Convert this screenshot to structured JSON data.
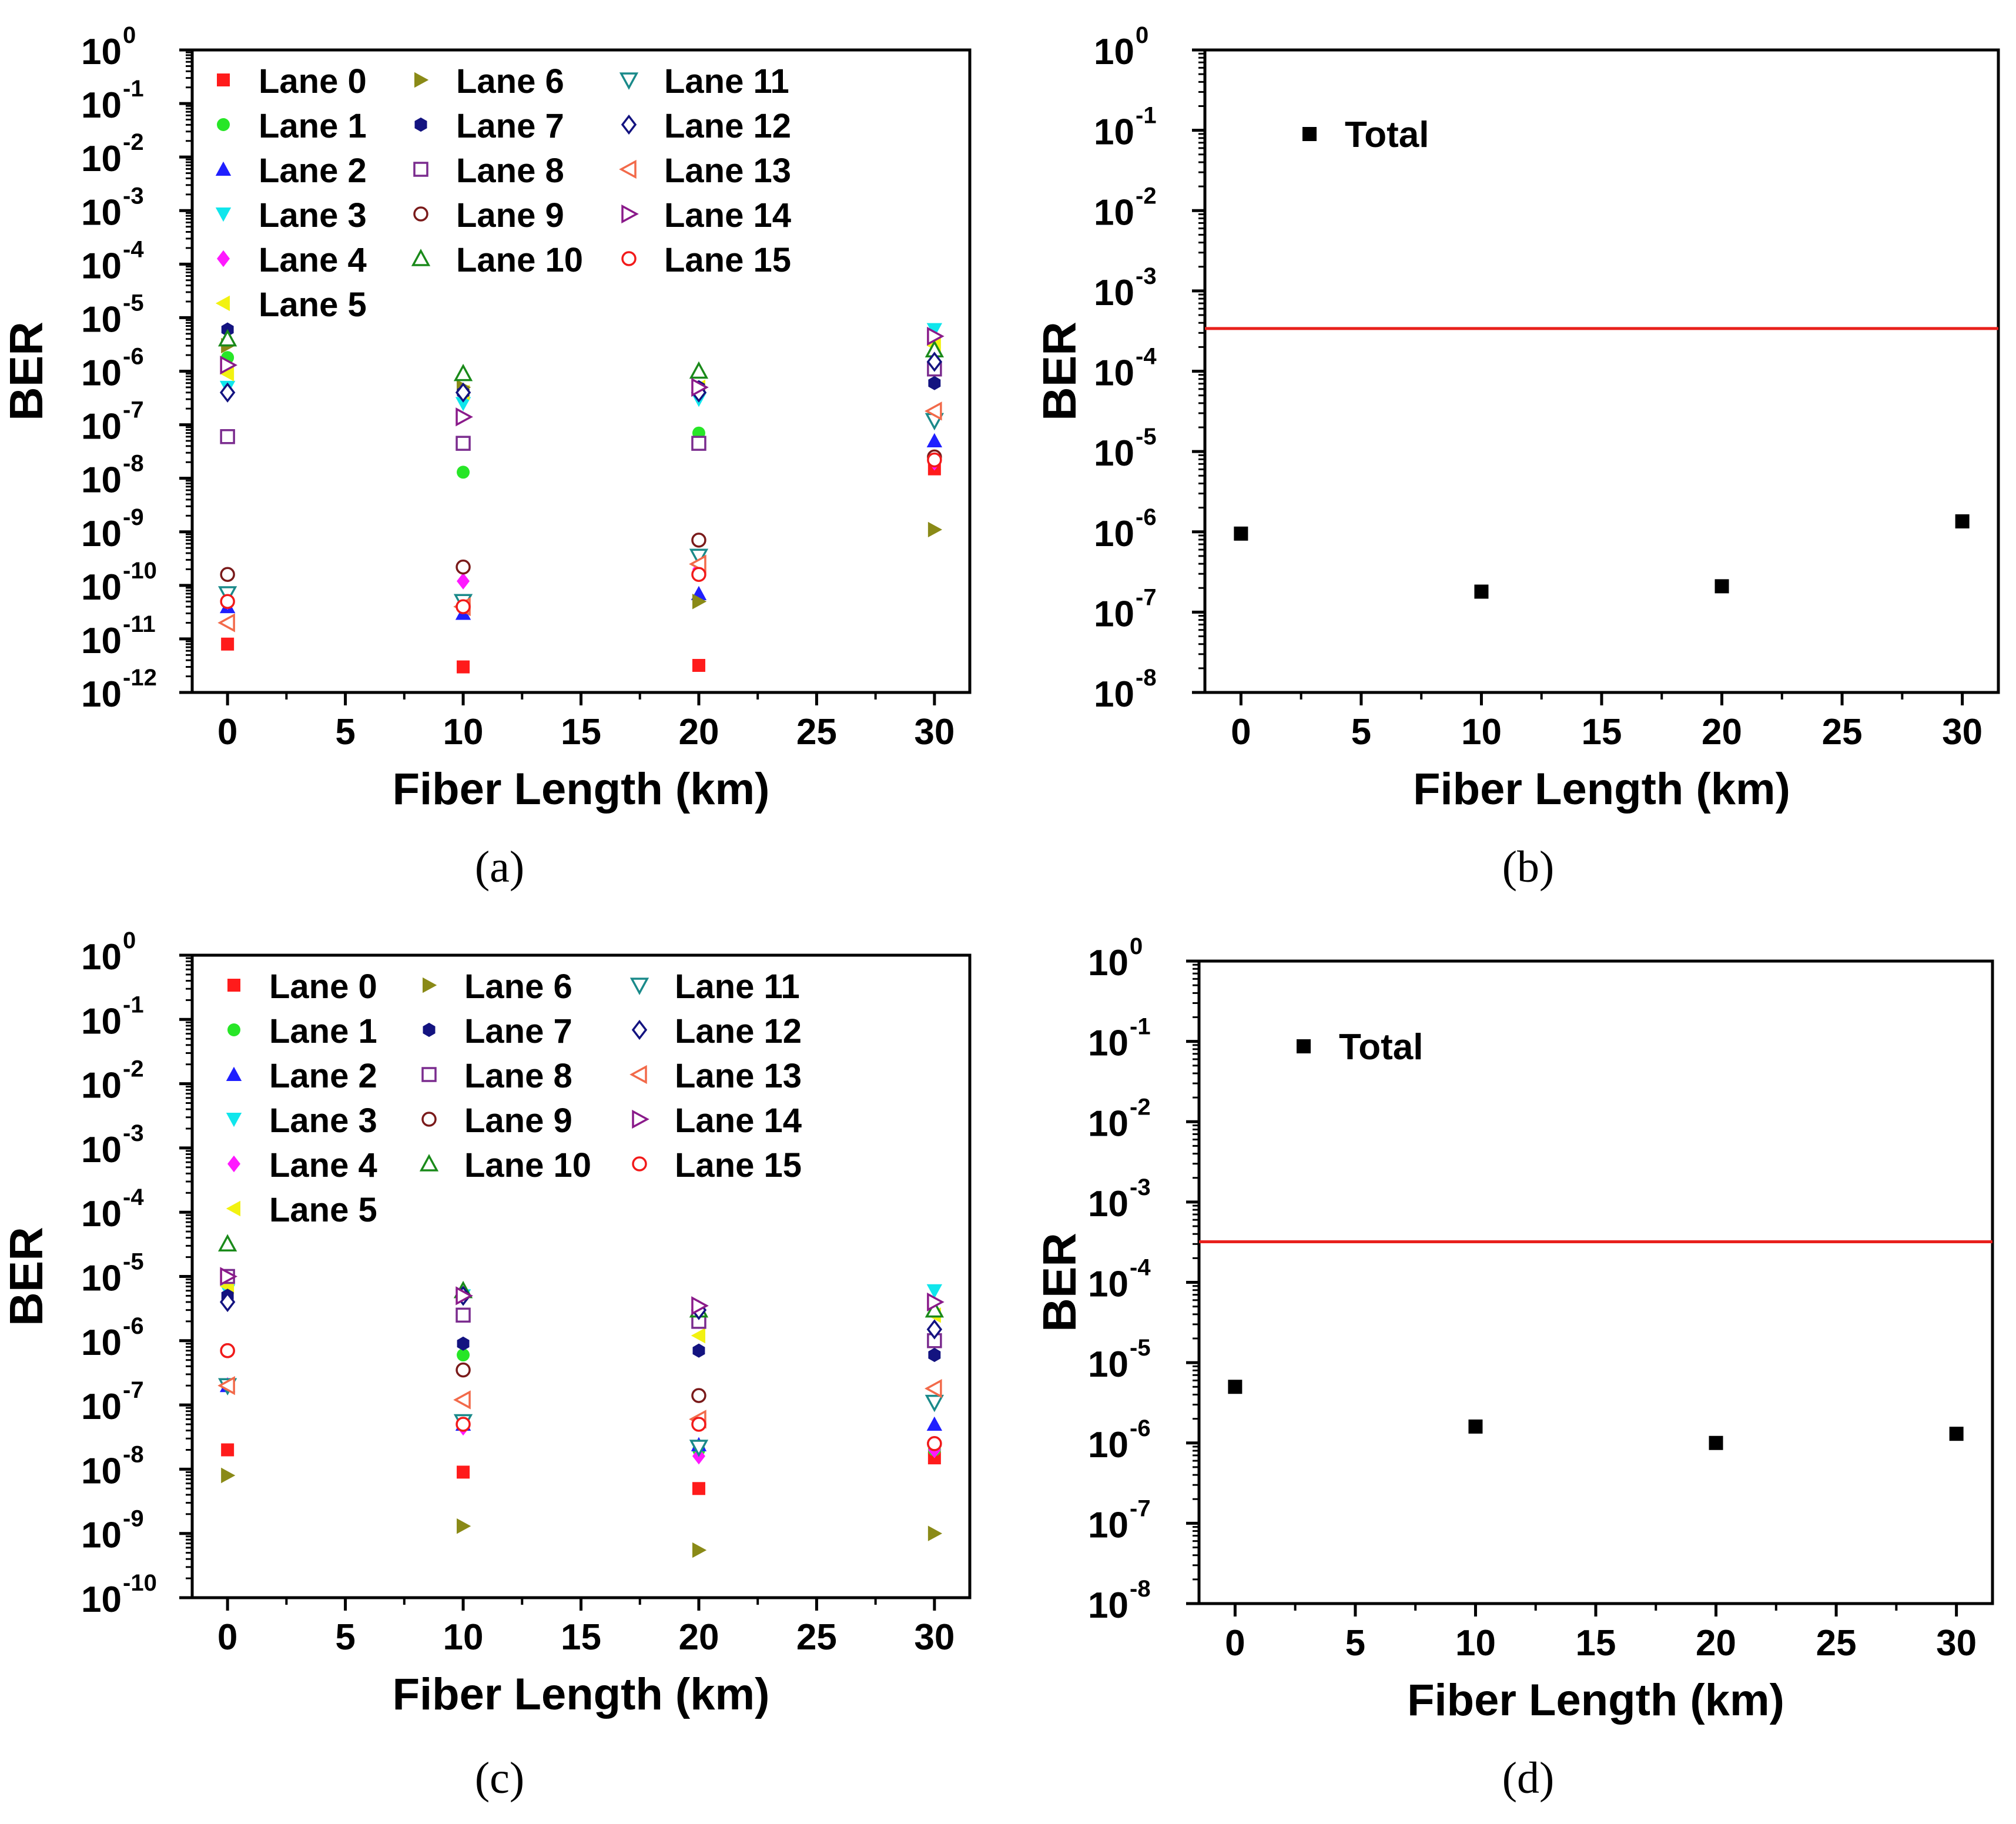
{
  "colors": {
    "axis": "#000000",
    "threshold_line": "#e8201c",
    "total_marker": "#000000"
  },
  "chart_data": [
    {
      "panel": "a",
      "caption": "(a)",
      "type": "scatter",
      "xlabel": "Fiber Length (km)",
      "ylabel": "BER",
      "yscale": "log",
      "xlim": [
        -1.5,
        31.5
      ],
      "x_ticks": [
        0,
        5,
        10,
        15,
        20,
        25,
        30
      ],
      "ylim_exp": [
        -12,
        0
      ],
      "x": [
        0,
        10,
        20,
        30
      ],
      "legend_position": "top-left inside",
      "series": [
        {
          "name": "Lane 0",
          "marker": "square",
          "color": "#ff1b1b",
          "values": [
            8e-12,
            3e-12,
            3.2e-12,
            1.5e-08
          ]
        },
        {
          "name": "Lane 1",
          "marker": "circle",
          "color": "#27e627",
          "values": [
            1.8e-06,
            1.3e-08,
            7e-08,
            1.6e-07
          ]
        },
        {
          "name": "Lane 2",
          "marker": "triangle-up",
          "color": "#1f1fff",
          "values": [
            4e-11,
            3e-11,
            7e-11,
            5e-08
          ]
        },
        {
          "name": "Lane 3",
          "marker": "triangle-down",
          "color": "#10e6ec",
          "values": [
            5e-07,
            2.5e-07,
            3e-07,
            6e-06
          ]
        },
        {
          "name": "Lane 4",
          "marker": "diamond",
          "color": "#ff19ff",
          "values": [
            5e-11,
            1.2e-10,
            2e-10,
            2e-08
          ]
        },
        {
          "name": "Lane 5",
          "marker": "triangle-left",
          "color": "#f2f211",
          "values": [
            9e-07,
            4e-07,
            5e-07,
            3e-06
          ]
        },
        {
          "name": "Lane 6",
          "marker": "triangle-right",
          "color": "#8a8a17",
          "values": [
            3e-06,
            5e-07,
            5e-11,
            1.1e-09
          ]
        },
        {
          "name": "Lane 7",
          "marker": "hexagon",
          "color": "#131380",
          "values": [
            6e-06,
            4e-07,
            5e-07,
            6e-07
          ]
        },
        {
          "name": "Lane 8",
          "marker": "square-open",
          "color": "#7a2b8e",
          "values": [
            6e-08,
            4.5e-08,
            4.5e-08,
            1.1e-06
          ]
        },
        {
          "name": "Lane 9",
          "marker": "circle-open",
          "color": "#7a1a1a",
          "values": [
            1.6e-10,
            2.2e-10,
            7e-10,
            2.5e-08
          ]
        },
        {
          "name": "Lane 10",
          "marker": "triangle-up-open",
          "color": "#1a8a1a",
          "values": [
            4e-06,
            9e-07,
            1e-06,
            2.5e-06
          ]
        },
        {
          "name": "Lane 11",
          "marker": "triangle-down-open",
          "color": "#1a8a8a",
          "values": [
            7e-11,
            5e-11,
            3.5e-10,
            1.2e-07
          ]
        },
        {
          "name": "Lane 12",
          "marker": "diamond-open",
          "color": "#131380",
          "values": [
            4e-07,
            4e-07,
            4e-07,
            1.5e-06
          ]
        },
        {
          "name": "Lane 13",
          "marker": "triangle-left-open",
          "color": "#f26a4a",
          "values": [
            2e-11,
            4e-11,
            2.5e-10,
            1.8e-07
          ]
        },
        {
          "name": "Lane 14",
          "marker": "triangle-right-open",
          "color": "#8a1a8a",
          "values": [
            1.3e-06,
            1.4e-07,
            5e-07,
            4.5e-06
          ]
        },
        {
          "name": "Lane 15",
          "marker": "circle-open",
          "color": "#f21a1a",
          "values": [
            5e-11,
            4e-11,
            1.6e-10,
            2.2e-08
          ]
        }
      ]
    },
    {
      "panel": "b",
      "caption": "(b)",
      "type": "scatter",
      "xlabel": "Fiber Length (km)",
      "ylabel": "BER",
      "yscale": "log",
      "xlim": [
        -1.5,
        31.5
      ],
      "x_ticks": [
        0,
        5,
        10,
        15,
        20,
        25,
        30
      ],
      "ylim_exp": [
        -8,
        0
      ],
      "x": [
        0,
        10,
        20,
        30
      ],
      "threshold": 0.00034,
      "legend_position": "top-left inside",
      "series": [
        {
          "name": "Total",
          "marker": "square",
          "color": "#000000",
          "values": [
            9.5e-07,
            1.8e-07,
            2.1e-07,
            1.35e-06
          ]
        }
      ]
    },
    {
      "panel": "c",
      "caption": "(c)",
      "type": "scatter",
      "xlabel": "Fiber Length (km)",
      "ylabel": "BER",
      "yscale": "log",
      "xlim": [
        -1.5,
        31.5
      ],
      "x_ticks": [
        0,
        5,
        10,
        15,
        20,
        25,
        30
      ],
      "ylim_exp": [
        -10,
        0
      ],
      "x": [
        0,
        10,
        20,
        30
      ],
      "legend_position": "top-left inside",
      "series": [
        {
          "name": "Lane 0",
          "marker": "square",
          "color": "#ff1b1b",
          "values": [
            2e-08,
            9e-09,
            5e-09,
            1.5e-08
          ]
        },
        {
          "name": "Lane 1",
          "marker": "circle",
          "color": "#27e627",
          "values": [
            2e-07,
            6e-07,
            2e-08,
            2e-08
          ]
        },
        {
          "name": "Lane 2",
          "marker": "triangle-up",
          "color": "#1f1fff",
          "values": [
            2e-07,
            5e-08,
            2.4e-08,
            5e-08
          ]
        },
        {
          "name": "Lane 3",
          "marker": "triangle-down",
          "color": "#10e6ec",
          "values": [
            6e-06,
            5e-06,
            2e-06,
            6e-06
          ]
        },
        {
          "name": "Lane 4",
          "marker": "diamond",
          "color": "#ff19ff",
          "values": [
            2e-07,
            4.5e-08,
            1.6e-08,
            2e-08
          ]
        },
        {
          "name": "Lane 5",
          "marker": "triangle-left",
          "color": "#f2f211",
          "values": [
            7e-06,
            2.5e-06,
            1.2e-06,
            2.5e-06
          ]
        },
        {
          "name": "Lane 6",
          "marker": "triangle-right",
          "color": "#8a8a17",
          "values": [
            8e-09,
            1.3e-09,
            5.5e-10,
            1e-09
          ]
        },
        {
          "name": "Lane 7",
          "marker": "hexagon",
          "color": "#131380",
          "values": [
            5e-06,
            9e-07,
            7e-07,
            6e-07
          ]
        },
        {
          "name": "Lane 8",
          "marker": "square-open",
          "color": "#7a2b8e",
          "values": [
            1e-05,
            2.5e-06,
            2e-06,
            1e-06
          ]
        },
        {
          "name": "Lane 9",
          "marker": "circle-open",
          "color": "#7a1a1a",
          "values": [
            7e-07,
            3.5e-07,
            1.4e-07,
            2.5e-08
          ]
        },
        {
          "name": "Lane 10",
          "marker": "triangle-up-open",
          "color": "#1a8a1a",
          "values": [
            3.2e-05,
            6e-06,
            3e-06,
            3e-06
          ]
        },
        {
          "name": "Lane 11",
          "marker": "triangle-down-open",
          "color": "#1a8a8a",
          "values": [
            2e-07,
            5.5e-08,
            2.2e-08,
            1.1e-07
          ]
        },
        {
          "name": "Lane 12",
          "marker": "diamond-open",
          "color": "#131380",
          "values": [
            4e-06,
            5e-06,
            3e-06,
            1.5e-06
          ]
        },
        {
          "name": "Lane 13",
          "marker": "triangle-left-open",
          "color": "#f26a4a",
          "values": [
            2e-07,
            1.2e-07,
            6e-08,
            1.8e-07
          ]
        },
        {
          "name": "Lane 14",
          "marker": "triangle-right-open",
          "color": "#8a1a8a",
          "values": [
            1e-05,
            5e-06,
            3.5e-06,
            4e-06
          ]
        },
        {
          "name": "Lane 15",
          "marker": "circle-open",
          "color": "#f21a1a",
          "values": [
            7e-07,
            5e-08,
            5e-08,
            2.5e-08
          ]
        }
      ]
    },
    {
      "panel": "d",
      "caption": "(d)",
      "type": "scatter",
      "xlabel": "Fiber Length (km)",
      "ylabel": "BER",
      "yscale": "log",
      "xlim": [
        -1.5,
        31.5
      ],
      "x_ticks": [
        0,
        5,
        10,
        15,
        20,
        25,
        30
      ],
      "ylim_exp": [
        -8,
        0
      ],
      "x": [
        0,
        10,
        20,
        30
      ],
      "threshold": 0.00032,
      "legend_position": "top-left inside",
      "series": [
        {
          "name": "Total",
          "marker": "square",
          "color": "#000000",
          "values": [
            5e-06,
            1.6e-06,
            1e-06,
            1.3e-06
          ]
        }
      ]
    }
  ]
}
